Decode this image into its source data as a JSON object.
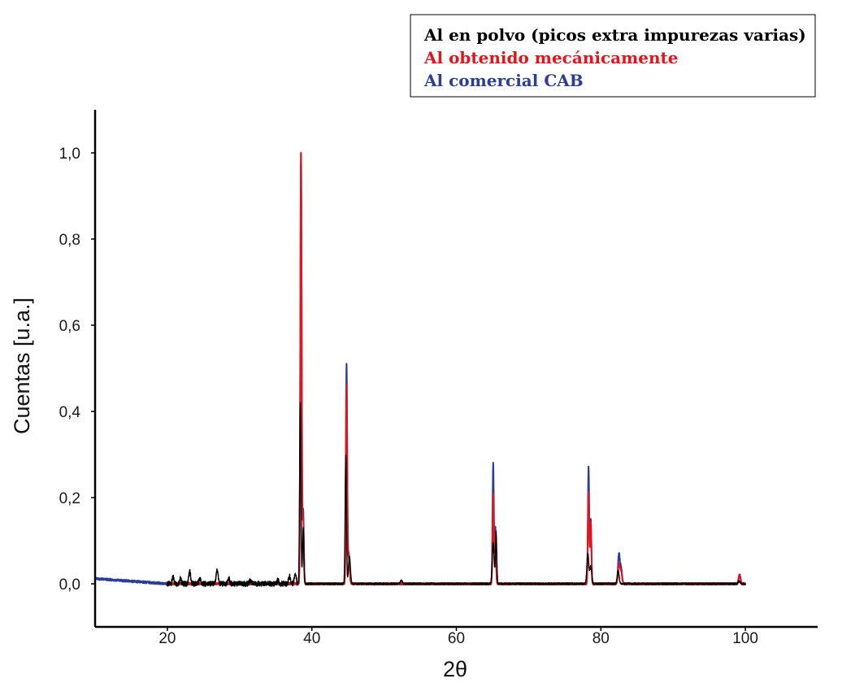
{
  "chart_data": {
    "type": "line",
    "title": "",
    "xlabel": "2θ",
    "ylabel": "Cuentas [u.a.]",
    "xlim": [
      10,
      110
    ],
    "ylim": [
      -0.1,
      1.1
    ],
    "x_ticks": [
      20,
      40,
      60,
      80,
      100
    ],
    "x_tick_labels": [
      "20",
      "40",
      "60",
      "80",
      "100"
    ],
    "y_ticks": [
      0.0,
      0.2,
      0.4,
      0.6,
      0.8,
      1.0
    ],
    "y_tick_labels": [
      "0,0",
      "0,2",
      "0,4",
      "0,6",
      "0,8",
      "1,0"
    ],
    "grid": false,
    "legend_position": "top-right",
    "series": [
      {
        "name": "Al en polvo (picos extra impurezas varias)",
        "color": "#000000",
        "x_range": [
          20,
          100
        ],
        "baseline": 0.0,
        "peaks": [
          {
            "x": 20.8,
            "y": 0.015
          },
          {
            "x": 21.8,
            "y": 0.012
          },
          {
            "x": 23.1,
            "y": 0.028
          },
          {
            "x": 24.5,
            "y": 0.012
          },
          {
            "x": 26.9,
            "y": 0.032
          },
          {
            "x": 28.5,
            "y": 0.012
          },
          {
            "x": 31.5,
            "y": 0.008
          },
          {
            "x": 35.3,
            "y": 0.008
          },
          {
            "x": 36.9,
            "y": 0.018
          },
          {
            "x": 37.7,
            "y": 0.025
          },
          {
            "x": 38.4,
            "y": 0.42
          },
          {
            "x": 38.8,
            "y": 0.13
          },
          {
            "x": 44.7,
            "y": 0.3
          },
          {
            "x": 45.2,
            "y": 0.065
          },
          {
            "x": 52.4,
            "y": 0.008
          },
          {
            "x": 65.1,
            "y": 0.095
          },
          {
            "x": 65.5,
            "y": 0.12
          },
          {
            "x": 78.2,
            "y": 0.07
          },
          {
            "x": 78.6,
            "y": 0.04
          },
          {
            "x": 82.4,
            "y": 0.03
          },
          {
            "x": 99.1,
            "y": 0.006
          }
        ]
      },
      {
        "name": "Al obtenido mecánicamente",
        "color": "#e3141b",
        "x_range": [
          20,
          100
        ],
        "baseline": 0.0,
        "peaks": [
          {
            "x": 38.5,
            "y": 1.0
          },
          {
            "x": 38.8,
            "y": 0.15
          },
          {
            "x": 44.8,
            "y": 0.46
          },
          {
            "x": 45.1,
            "y": 0.06
          },
          {
            "x": 65.1,
            "y": 0.21
          },
          {
            "x": 65.4,
            "y": 0.11
          },
          {
            "x": 78.3,
            "y": 0.21
          },
          {
            "x": 78.6,
            "y": 0.14
          },
          {
            "x": 82.5,
            "y": 0.045
          },
          {
            "x": 82.8,
            "y": 0.028
          },
          {
            "x": 99.2,
            "y": 0.022
          }
        ]
      },
      {
        "name": "Al comercial CAB",
        "color": "#2b3d9b",
        "x_range": [
          10,
          100
        ],
        "baseline": 0.0,
        "peaks": [
          {
            "x": 38.5,
            "y": 1.0
          },
          {
            "x": 38.8,
            "y": 0.17
          },
          {
            "x": 44.8,
            "y": 0.505
          },
          {
            "x": 45.1,
            "y": 0.07
          },
          {
            "x": 65.1,
            "y": 0.28
          },
          {
            "x": 65.4,
            "y": 0.13
          },
          {
            "x": 78.3,
            "y": 0.27
          },
          {
            "x": 78.6,
            "y": 0.15
          },
          {
            "x": 82.5,
            "y": 0.068
          },
          {
            "x": 82.8,
            "y": 0.035
          },
          {
            "x": 99.2,
            "y": 0.02
          }
        ]
      }
    ]
  }
}
